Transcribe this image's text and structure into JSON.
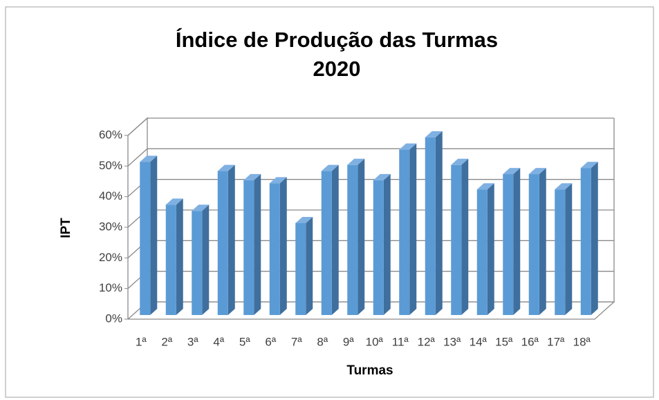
{
  "chart_data": {
    "type": "bar",
    "title": "Índice de Produção das Turmas",
    "subtitle": "2020",
    "xlabel": "Turmas",
    "ylabel": "IPT",
    "categories": [
      "1ª",
      "2ª",
      "3ª",
      "4ª",
      "5ª",
      "6ª",
      "7ª",
      "8ª",
      "9ª",
      "10ª",
      "11ª",
      "12ª",
      "13ª",
      "14ª",
      "15ª",
      "16ª",
      "17ª",
      "18ª"
    ],
    "values": [
      50,
      36,
      34,
      47,
      44,
      43,
      30,
      47,
      49,
      44,
      54,
      58,
      49,
      41,
      46,
      46,
      41,
      48
    ],
    "color": "#5b9bd5",
    "ylim": [
      0,
      60
    ],
    "yticks": [
      {
        "value": 0,
        "label": "0%"
      },
      {
        "value": 10,
        "label": "10%"
      },
      {
        "value": 20,
        "label": "20%"
      },
      {
        "value": 30,
        "label": "30%"
      },
      {
        "value": 40,
        "label": "40%"
      },
      {
        "value": 50,
        "label": "50%"
      },
      {
        "value": 60,
        "label": "60%"
      }
    ],
    "grid": true
  }
}
